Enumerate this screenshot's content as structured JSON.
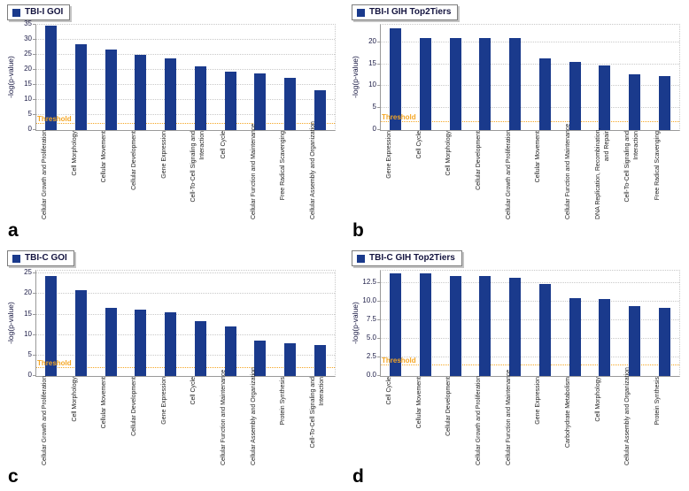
{
  "figure": {
    "threshold_label": "Threshold",
    "colors": {
      "bar": "#1a3a8c",
      "threshold": "#f5a623",
      "grid": "#c9c9c9",
      "axis": "#9a9a9a",
      "tick_text": "#1b1b46"
    }
  },
  "chart_data": [
    {
      "type": "bar",
      "panel_letter": "a",
      "legend": "TBI-I GOI",
      "ylabel": "-log(p-value)",
      "ylim": [
        0,
        35
      ],
      "ymax": 35,
      "yticks": [
        0,
        5,
        10,
        15,
        20,
        25,
        30,
        35
      ],
      "ytick_labels": [
        "0",
        "5",
        "10",
        "15",
        "20",
        "25",
        "30",
        "35"
      ],
      "threshold": 2.2,
      "categories": [
        "Cellular Growth and Proliferation",
        "Cell Morphology",
        "Cellular Movement",
        "Cellular Development",
        "Gene Expression",
        "Cell-To-Cell Signaling and\nInteraction",
        "Cell Cycle",
        "Cellular Function and Maintenance",
        "Free Radical Scavenging",
        "Cellular Assembly and Organization"
      ],
      "values": [
        34.7,
        28.6,
        26.8,
        25.0,
        23.9,
        21.2,
        19.4,
        18.9,
        17.5,
        13.2
      ]
    },
    {
      "type": "bar",
      "panel_letter": "b",
      "legend": "TBI-I GIH Top2Tiers",
      "ylabel": "-log(p-value)",
      "ylim": [
        0,
        24
      ],
      "ymax": 24,
      "yticks": [
        0,
        5,
        10,
        15,
        20
      ],
      "ytick_labels": [
        "0",
        "5",
        "10",
        "15",
        "20"
      ],
      "threshold": 1.9,
      "categories": [
        "Gene Expression",
        "Cell Cycle",
        "Cell Morphology",
        "Cellular Development",
        "Cellular Growth and Proliferation",
        "Cellular Movement",
        "Cellular Function and Maintenance",
        "DNA Replication, Recombination,\nand Repair",
        "Cell-To-Cell Signaling and\nInteraction",
        "Free Radical Scavenging"
      ],
      "values": [
        23.2,
        21.0,
        21.0,
        21.0,
        21.0,
        16.3,
        15.5,
        14.7,
        12.8,
        12.3
      ]
    },
    {
      "type": "bar",
      "panel_letter": "c",
      "legend": "TBI-C GOI",
      "ylabel": "-log(p-value)",
      "ylim": [
        0,
        25.7
      ],
      "ymax": 25.7,
      "yticks": [
        0,
        5,
        10,
        15,
        20,
        25
      ],
      "ytick_labels": [
        "0",
        "5",
        "10",
        "15",
        "20",
        "25"
      ],
      "threshold": 1.9,
      "categories": [
        "Cellular Growth and Proliferation",
        "Cell Morphology",
        "Cellular Movement",
        "Cellular Development",
        "Gene Expression",
        "Cell Cycle",
        "Cellular Function and Maintenance",
        "Cellular Assembly and Organization",
        "Protein Synthesis",
        "Cell-To-Cell Signaling and\nInteraction"
      ],
      "values": [
        24.4,
        21.0,
        16.6,
        16.2,
        15.5,
        13.4,
        12.0,
        8.7,
        8.1,
        7.5
      ]
    },
    {
      "type": "bar",
      "panel_letter": "d",
      "legend": "TBI-C GIH Top2Tiers",
      "ylabel": "-log(p-value)",
      "ylim": [
        0,
        14.1
      ],
      "ymax": 14.1,
      "yticks": [
        0,
        2.5,
        5,
        7.5,
        10,
        12.5
      ],
      "ytick_labels": [
        "0.0",
        "2.5",
        "5.0",
        "7.5",
        "10.0",
        "12.5"
      ],
      "threshold": 1.4,
      "categories": [
        "Cell Cycle",
        "Cellular Movement",
        "Cellular Development",
        "Cellular Growth and Proliferation",
        "Cellular Function and Maintenance",
        "Gene Expression",
        "Carbohydrate Metabolism",
        "Cell Morphology",
        "Cellular Assembly and Organization",
        "Protein Synthesis"
      ],
      "values": [
        13.8,
        13.8,
        13.4,
        13.4,
        13.1,
        12.3,
        10.4,
        10.3,
        9.4,
        9.1
      ]
    }
  ]
}
